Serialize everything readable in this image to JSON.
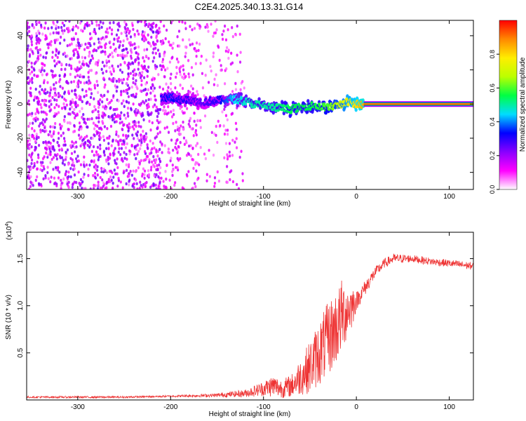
{
  "title": "C2E4.2025.340.13.31.G14",
  "chart_data": [
    {
      "type": "heatmap",
      "xlabel": "Height of straight line (km)",
      "ylabel": "Frequency (Hz)",
      "xlim": [
        -355,
        126
      ],
      "ylim": [
        -50,
        49
      ],
      "xticks": [
        -300,
        -200,
        -100,
        0,
        100
      ],
      "xtick_labels": [
        "-300",
        "-200",
        "-100",
        "0",
        "100"
      ],
      "yticks": [
        -40,
        -20,
        0,
        20,
        40
      ],
      "ytick_labels": [
        "-40",
        "-20",
        "0",
        "20",
        "40"
      ],
      "colorbar": {
        "label": "Normalized spectral amplitude",
        "range": [
          0,
          1
        ],
        "ticks": [
          0.0,
          0.2,
          0.4,
          0.6,
          0.8
        ],
        "tick_labels": [
          "0.0",
          "0.2",
          "0.4",
          "0.6",
          "0.8"
        ],
        "colors": [
          "#ffffff",
          "#ff00ff",
          "#8800ff",
          "#0000ff",
          "#00ddff",
          "#00ff44",
          "#bbff00",
          "#ffee00",
          "#ff8800",
          "#ff0000"
        ]
      },
      "ridge": {
        "description": "high-amplitude signal trace near 0 Hz",
        "x": [
          -210,
          -200,
          -190,
          -180,
          -170,
          -150,
          -130,
          -110,
          -90,
          -70,
          -50,
          -30,
          -10,
          0,
          8
        ],
        "y": [
          3,
          4,
          2,
          3,
          1,
          2,
          3,
          0,
          -2,
          -3,
          -1,
          -2,
          1,
          0,
          0
        ],
        "amplitude": [
          0.3,
          0.35,
          0.3,
          0.3,
          0.25,
          0.3,
          0.45,
          0.5,
          0.5,
          0.55,
          0.55,
          0.6,
          0.75,
          0.8,
          0.85
        ]
      },
      "carrier_band": {
        "x_start": 8,
        "x_end": 126,
        "y": 0,
        "amplitude": 1.0
      },
      "noise_region_x": [
        -355,
        -120
      ]
    },
    {
      "type": "line",
      "xlabel": "Height of straight line (km)",
      "ylabel": "SNR (10 * v/v)",
      "exponent_label": "(x10",
      "exponent_power": "4",
      "exponent_close": ")",
      "xlim": [
        -355,
        126
      ],
      "ylim": [
        0,
        1.78
      ],
      "xticks": [
        -300,
        -200,
        -100,
        0,
        100
      ],
      "xtick_labels": [
        "-300",
        "-200",
        "-100",
        "0",
        "100"
      ],
      "yticks": [
        0.5,
        1.0,
        1.5
      ],
      "ytick_labels": [
        "0.5",
        "1.0",
        "1.5"
      ],
      "series": [
        {
          "name": "SNR",
          "color": "#ee3333",
          "x": [
            -355,
            -300,
            -250,
            -200,
            -150,
            -120,
            -100,
            -90,
            -80,
            -70,
            -60,
            -50,
            -40,
            -30,
            -20,
            -15,
            -10,
            -5,
            0,
            10,
            20,
            30,
            40,
            60,
            80,
            100,
            126
          ],
          "y": [
            0.03,
            0.03,
            0.03,
            0.04,
            0.05,
            0.07,
            0.12,
            0.15,
            0.12,
            0.15,
            0.25,
            0.35,
            0.5,
            0.65,
            0.8,
            0.9,
            0.95,
            1.0,
            1.05,
            1.2,
            1.35,
            1.45,
            1.5,
            1.5,
            1.47,
            1.45,
            1.42
          ],
          "noise": [
            0.01,
            0.01,
            0.01,
            0.01,
            0.02,
            0.04,
            0.08,
            0.12,
            0.1,
            0.12,
            0.2,
            0.28,
            0.35,
            0.4,
            0.4,
            0.4,
            0.3,
            0.25,
            0.1,
            0.08,
            0.06,
            0.05,
            0.05,
            0.04,
            0.04,
            0.04,
            0.04
          ]
        }
      ]
    }
  ]
}
